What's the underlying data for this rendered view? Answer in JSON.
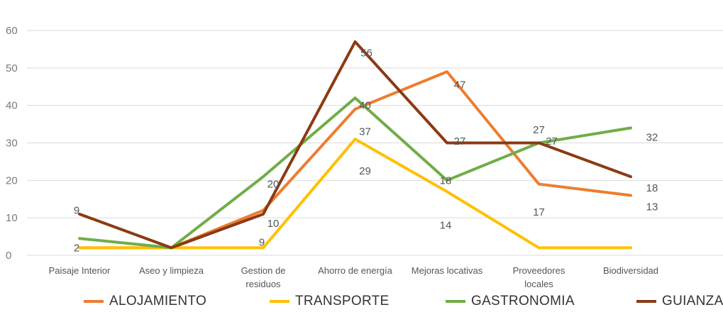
{
  "chart_data": {
    "type": "line",
    "categories": [
      [
        "Paisaje Interior"
      ],
      [
        "Aseo y limpieza"
      ],
      [
        "Gestion de",
        "residuos"
      ],
      [
        "Ahorro de energía"
      ],
      [
        "Mejoras locativas"
      ],
      [
        "Proveedores",
        "locales"
      ],
      [
        "Biodiversidad"
      ]
    ],
    "ylim": [
      0,
      60
    ],
    "yticks": [
      "0",
      "10",
      "20",
      "30",
      "40",
      "50",
      "60"
    ],
    "grid": true,
    "legend_position": "bottom",
    "series": [
      {
        "name": "ALOJAMIENTO",
        "color": "#ed7d31",
        "values": [
          2,
          2,
          12,
          39,
          49,
          19,
          16
        ]
      },
      {
        "name": "TRANSPORTE",
        "color": "#ffc000",
        "values": [
          2,
          2,
          2,
          31,
          17,
          2,
          2
        ]
      },
      {
        "name": "GASTRONOMIA",
        "color": "#70ad47",
        "values": [
          4.5,
          2,
          21,
          42,
          20,
          30,
          34
        ]
      },
      {
        "name": "GUIANZA",
        "color": "#8b3a14",
        "values": [
          11,
          2,
          11,
          57,
          30,
          30,
          21
        ]
      }
    ],
    "data_labels": [
      {
        "text": "9",
        "cat": 0,
        "y": 12,
        "dx": -4
      },
      {
        "text": "2",
        "cat": 0,
        "y": 2,
        "dx": -4
      },
      {
        "text": "20",
        "cat": 2,
        "y": 19,
        "dx": 14
      },
      {
        "text": "10",
        "cat": 2,
        "y": 8.5,
        "dx": 14
      },
      {
        "text": "9",
        "cat": 2,
        "y": 3.5,
        "dx": -2
      },
      {
        "text": "56",
        "cat": 3,
        "y": 54,
        "dx": 16
      },
      {
        "text": "40",
        "cat": 3,
        "y": 40,
        "dx": 14
      },
      {
        "text": "37",
        "cat": 3,
        "y": 33,
        "dx": 14
      },
      {
        "text": "29",
        "cat": 3,
        "y": 22.5,
        "dx": 14
      },
      {
        "text": "47",
        "cat": 4,
        "y": 45.5,
        "dx": 18
      },
      {
        "text": "27",
        "cat": 4,
        "y": 30.5,
        "dx": 18
      },
      {
        "text": "18",
        "cat": 4,
        "y": 20,
        "dx": -2
      },
      {
        "text": "14",
        "cat": 4,
        "y": 8,
        "dx": -2
      },
      {
        "text": "27",
        "cat": 5,
        "y": 33.5,
        "dx": 0
      },
      {
        "text": "27",
        "cat": 5,
        "y": 30.5,
        "dx": 18
      },
      {
        "text": "17",
        "cat": 5,
        "y": 11.5,
        "dx": 0
      },
      {
        "text": "32",
        "cat": 6,
        "y": 31.5,
        "dx": 30
      },
      {
        "text": "18",
        "cat": 6,
        "y": 18,
        "dx": 30
      },
      {
        "text": "13",
        "cat": 6,
        "y": 13,
        "dx": 30
      }
    ]
  }
}
